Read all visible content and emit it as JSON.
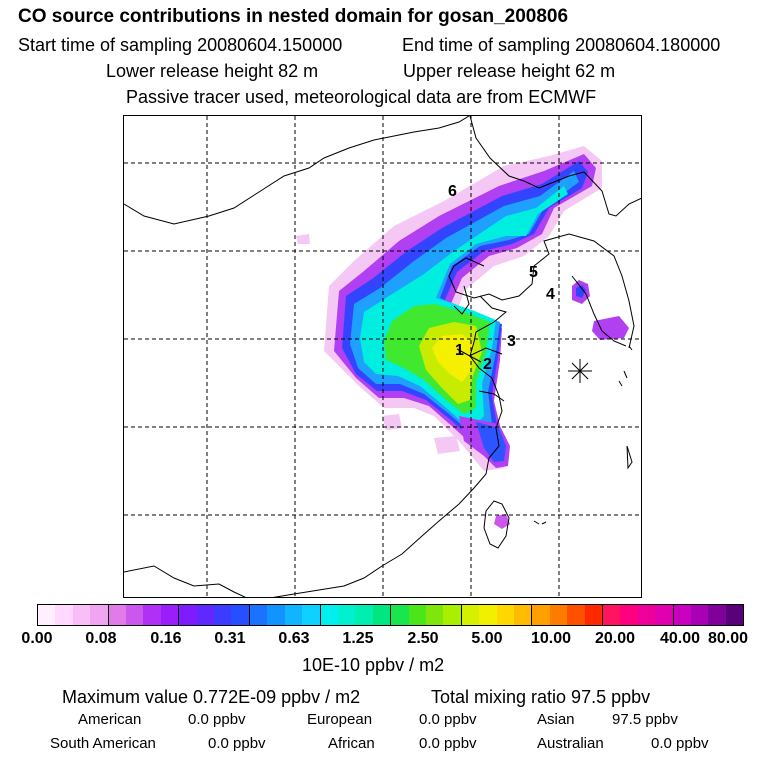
{
  "header": {
    "title": "CO  source contributions in nested domain for gosan_200806",
    "start_label": "Start time of sampling 20080604.150000",
    "end_label": "End time of sampling 20080604.180000",
    "lower_label": "Lower release height   82 m",
    "upper_label": "Upper release height   62 m",
    "note": "Passive tracer used, meteorological data are from ECMWF"
  },
  "map": {
    "regions": [
      "1",
      "2",
      "3",
      "4",
      "5",
      "6"
    ]
  },
  "colorbar": {
    "colors": [
      "#fff0ff",
      "#ffd9ff",
      "#f8bef8",
      "#efa5ef",
      "#e07be9",
      "#cc57ee",
      "#b030f5",
      "#9b1dfa",
      "#7f1cff",
      "#5f28ff",
      "#3c3cff",
      "#2650ff",
      "#1a72ff",
      "#1393ff",
      "#12b4ff",
      "#0fd1ff",
      "#00f0f0",
      "#00f0d0",
      "#00eeb0",
      "#00e680",
      "#19e64f",
      "#4be619",
      "#7ee60c",
      "#aaee00",
      "#d5f000",
      "#f0f000",
      "#ffd800",
      "#ffbc00",
      "#ffa000",
      "#ff7b00",
      "#ff5000",
      "#ff2800",
      "#ff1460",
      "#ff0080",
      "#f0009a",
      "#e000b0",
      "#c800c0",
      "#a800b4",
      "#80009a",
      "#58007a"
    ],
    "ticks": [
      "0.00",
      "0.08",
      "0.16",
      "0.31",
      "0.63",
      "1.25",
      "2.50",
      "5.00",
      "10.00",
      "20.00",
      "40.00",
      "80.00"
    ],
    "unit": "10E-10 ppbv / m2"
  },
  "summary": {
    "max_value": "Maximum value  0.772E-09 ppbv / m2",
    "total_mixing": "Total mixing ratio       97.5 ppbv",
    "american_label": "American",
    "american_value": "0.0 ppbv",
    "european_label": "European",
    "european_value": "0.0 ppbv",
    "asian_label": "Asian",
    "asian_value": "97.5 ppbv",
    "south_american_label": "South American",
    "south_american_value": "0.0 ppbv",
    "african_label": "African",
    "african_value": "0.0 ppbv",
    "australian_label": "Australian",
    "australian_value": "0.0 ppbv"
  }
}
